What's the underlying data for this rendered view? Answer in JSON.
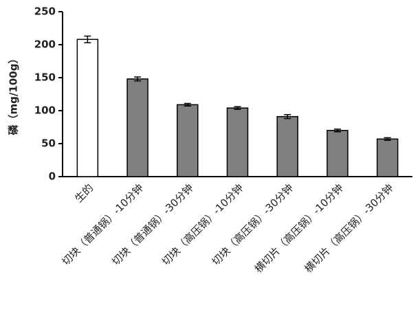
{
  "chart_data": {
    "type": "bar",
    "y_label": "磷（mg/100g）",
    "categories": [
      "生的",
      "切块（普通锅）-10分钟",
      "切块（普通锅）-30分钟",
      "切块（高压锅）-10分钟",
      "切块（高压锅）-30分钟",
      "横切片（高压锅）-10分钟",
      "横切片（高压锅）-30分钟"
    ],
    "values": [
      208,
      148,
      109,
      104,
      91,
      70,
      57
    ],
    "errors": [
      5,
      3,
      2,
      2,
      3,
      2,
      2
    ],
    "colors": [
      "#ffffff",
      "#808080",
      "#808080",
      "#808080",
      "#808080",
      "#808080",
      "#808080"
    ],
    "ylim": [
      0,
      250
    ],
    "yticks": [
      0,
      50,
      100,
      150,
      200,
      250
    ]
  }
}
